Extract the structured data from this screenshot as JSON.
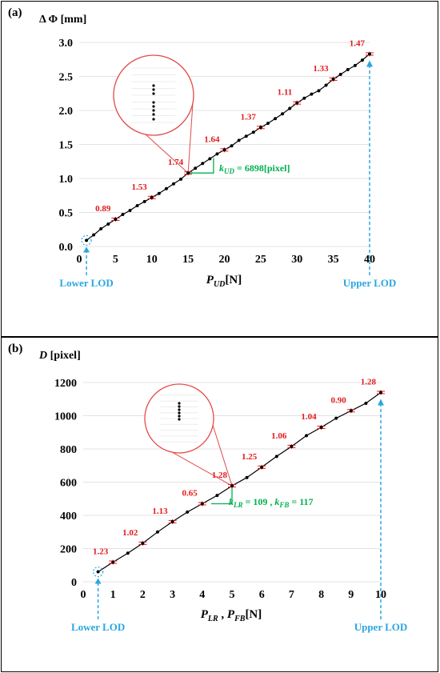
{
  "figure": {
    "panel_a_tag": "(a)",
    "panel_b_tag": "(b)"
  },
  "chart_data": [
    {
      "type": "line",
      "ylabel": "Δ Φ [mm]",
      "xlabel_main": "P",
      "xlabel_sub": "UD",
      "xlabel_unit": "[N]",
      "xlim": [
        0,
        40
      ],
      "ylim": [
        0,
        3.0
      ],
      "x_ticks": [
        0,
        5,
        10,
        15,
        20,
        25,
        30,
        35,
        40
      ],
      "y_ticks": [
        "0.0",
        "0.5",
        "1.0",
        "1.5",
        "2.0",
        "2.5",
        "3.0"
      ],
      "series": [
        {
          "x": [
            1,
            2,
            3,
            4,
            5,
            6,
            7,
            8,
            9,
            10,
            11,
            12,
            13,
            14,
            15,
            16,
            17,
            18,
            19,
            20,
            21,
            22,
            23,
            24,
            25,
            26,
            27,
            28,
            29,
            30,
            31,
            32,
            33,
            34,
            35,
            36,
            37,
            38,
            39,
            40
          ],
          "values": [
            0.09,
            0.17,
            0.26,
            0.33,
            0.4,
            0.47,
            0.53,
            0.6,
            0.66,
            0.72,
            0.78,
            0.85,
            0.92,
            0.99,
            1.08,
            1.15,
            1.22,
            1.29,
            1.36,
            1.42,
            1.48,
            1.56,
            1.62,
            1.68,
            1.75,
            1.81,
            1.88,
            1.95,
            2.03,
            2.11,
            2.18,
            2.24,
            2.29,
            2.37,
            2.46,
            2.53,
            2.6,
            2.66,
            2.74,
            2.83
          ]
        }
      ],
      "error_labels": [
        {
          "x": 5,
          "y": 0.4,
          "text": "0.89"
        },
        {
          "x": 10,
          "y": 0.72,
          "text": "1.53"
        },
        {
          "x": 15,
          "y": 1.08,
          "text": "1.74"
        },
        {
          "x": 20,
          "y": 1.42,
          "text": "1.64"
        },
        {
          "x": 25,
          "y": 1.75,
          "text": "1.37"
        },
        {
          "x": 30,
          "y": 2.11,
          "text": "1.11"
        },
        {
          "x": 35,
          "y": 2.46,
          "text": "1.33"
        },
        {
          "x": 40,
          "y": 2.83,
          "text": "1.47"
        }
      ],
      "slope_label_main": "k",
      "slope_label_sub": "UD",
      "slope_label_value": " = 6898[pixel]",
      "lower_lod_label": "Lower LOD",
      "upper_lod_label": "Upper LOD",
      "lower_lod_x": 1,
      "upper_lod_x": 40,
      "zoom_point_x": 15,
      "colors": {
        "line": "#000000",
        "error": "#e31a1c",
        "slope": "#00b050",
        "lod": "#2aa7e0",
        "zoom": "#e34a4a"
      }
    },
    {
      "type": "line",
      "ylabel_main": "D",
      "ylabel_unit": " [pixel]",
      "xlabel_main1": "P",
      "xlabel_sub1": "LR",
      "xlabel_sep": " , ",
      "xlabel_main2": "P",
      "xlabel_sub2": "FB",
      "xlabel_unit": "[N]",
      "xlim": [
        0,
        10
      ],
      "ylim": [
        0,
        1200
      ],
      "x_ticks": [
        0,
        1,
        2,
        3,
        4,
        5,
        6,
        7,
        8,
        9,
        10
      ],
      "y_ticks": [
        0,
        200,
        400,
        600,
        800,
        1000,
        1200
      ],
      "series": [
        {
          "x": [
            0.5,
            1,
            1.5,
            2,
            2.5,
            3,
            3.5,
            4,
            4.5,
            5,
            5.5,
            6,
            6.5,
            7,
            7.5,
            8,
            8.5,
            9,
            9.5,
            10
          ],
          "values": [
            60,
            118,
            172,
            232,
            300,
            362,
            420,
            470,
            520,
            578,
            628,
            690,
            755,
            815,
            880,
            930,
            985,
            1030,
            1075,
            1140
          ]
        }
      ],
      "error_labels": [
        {
          "x": 1,
          "y": 118,
          "text": "1.23"
        },
        {
          "x": 2,
          "y": 232,
          "text": "1.02"
        },
        {
          "x": 3,
          "y": 362,
          "text": "1.13"
        },
        {
          "x": 4,
          "y": 470,
          "text": "0.65"
        },
        {
          "x": 5,
          "y": 578,
          "text": "1.28"
        },
        {
          "x": 6,
          "y": 690,
          "text": "1.25"
        },
        {
          "x": 7,
          "y": 815,
          "text": "1.06"
        },
        {
          "x": 8,
          "y": 930,
          "text": "1.04"
        },
        {
          "x": 9,
          "y": 1030,
          "text": "0.90"
        },
        {
          "x": 10,
          "y": 1140,
          "text": "1.28"
        }
      ],
      "slope_label_a_main": "k",
      "slope_label_a_sub": "LR",
      "slope_label_a_value": " = 109 , ",
      "slope_label_b_main": "k",
      "slope_label_b_sub": "FB",
      "slope_label_b_value": " = 117",
      "lower_lod_label": "Lower LOD",
      "upper_lod_label": "Upper LOD",
      "lower_lod_x": 0.5,
      "upper_lod_x": 10,
      "zoom_point_x": 5,
      "colors": {
        "line": "#000000",
        "error": "#e31a1c",
        "slope": "#00b050",
        "lod": "#2aa7e0",
        "zoom": "#e34a4a"
      }
    }
  ]
}
